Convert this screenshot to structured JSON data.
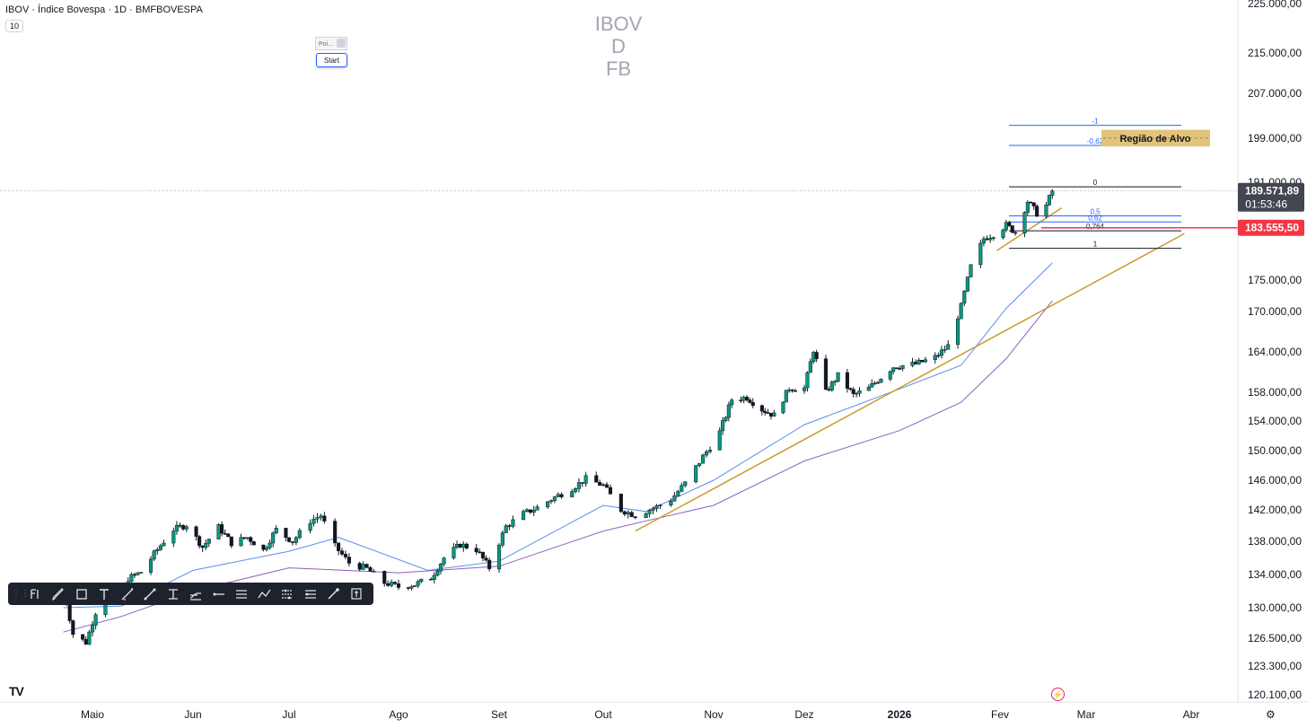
{
  "header": {
    "symbol_line": "IBOV · Índice Bovespa · 1D · BMFBOVESPA",
    "ma_badge": "10"
  },
  "watermark": {
    "lines": [
      "IBOV",
      "D",
      "FB"
    ]
  },
  "widget": {
    "title": "Poi…",
    "start_label": "Start"
  },
  "toolbar": {
    "icons": [
      "drag-handle-icon",
      "fib-pitchfork-icon",
      "brush-icon",
      "rectangle-icon",
      "text-icon",
      "trend-angle-icon",
      "line-icon",
      "fib-time-icon",
      "ruler-icon",
      "horizontal-ray-icon",
      "parallel-channel-icon",
      "path-icon",
      "regression-icon",
      "fib-channel-icon",
      "measure-icon",
      "snapshot-icon"
    ]
  },
  "colors": {
    "up_candle": "#089981",
    "down_candle": "#131722",
    "ma_fast": "#5b8def",
    "ma_slow": "#8e5fbf",
    "trendline": "#c99a2e",
    "target_box": "#e2c37a",
    "current_price_bg": "#434651",
    "alert_price": "#f23645",
    "fib_blue": "#2962ff"
  },
  "chart_data": {
    "type": "candlestick",
    "title": "",
    "xlabel": "",
    "ylabel": "",
    "y_axis_labels": [
      "225.000,00",
      "215.000,00",
      "207.000,00",
      "199.000,00",
      "191.000,00",
      "175.000,00",
      "170.000,00",
      "164.000,00",
      "158.000,00",
      "154.000,00",
      "150.000,00",
      "146.000,00",
      "142.000,00",
      "138.000,00",
      "134.000,00",
      "130.000,00",
      "126.500,00",
      "123.300,00",
      "120.100,00"
    ],
    "y_axis_values": [
      225000,
      215000,
      207000,
      199000,
      191000,
      175000,
      170000,
      164000,
      158000,
      154000,
      150000,
      146000,
      142000,
      138000,
      134000,
      130000,
      126500,
      123300,
      120100
    ],
    "x_axis_labels": [
      "Maio",
      "Jun",
      "Jul",
      "Ago",
      "Set",
      "Out",
      "Nov",
      "Dez",
      "2026",
      "Fev",
      "Mar",
      "Abr"
    ],
    "x_axis_dates": [
      "2025-05-01",
      "2025-06-01",
      "2025-07-01",
      "2025-08-01",
      "2025-09-01",
      "2025-10-01",
      "2025-11-01",
      "2025-12-01",
      "2026-01-01",
      "2026-02-01",
      "2026-03-01",
      "2026-04-01"
    ],
    "close_path": [
      [
        "2025-04-22",
        132500
      ],
      [
        "2025-04-25",
        127000
      ],
      [
        "2025-04-29",
        126000
      ],
      [
        "2025-05-02",
        129500
      ],
      [
        "2025-05-07",
        131500
      ],
      [
        "2025-05-12",
        133500
      ],
      [
        "2025-05-16",
        134300
      ],
      [
        "2025-05-21",
        137000
      ],
      [
        "2025-05-26",
        139500
      ],
      [
        "2025-05-30",
        140100
      ],
      [
        "2025-06-04",
        137300
      ],
      [
        "2025-06-09",
        139800
      ],
      [
        "2025-06-13",
        137800
      ],
      [
        "2025-06-18",
        138500
      ],
      [
        "2025-06-23",
        136900
      ],
      [
        "2025-06-27",
        139500
      ],
      [
        "2025-07-02",
        138000
      ],
      [
        "2025-07-07",
        140600
      ],
      [
        "2025-07-10",
        141300
      ],
      [
        "2025-07-14",
        137400
      ],
      [
        "2025-07-18",
        135400
      ],
      [
        "2025-07-23",
        134700
      ],
      [
        "2025-07-28",
        133000
      ],
      [
        "2025-08-01",
        132500
      ],
      [
        "2025-08-06",
        132800
      ],
      [
        "2025-08-11",
        133600
      ],
      [
        "2025-08-15",
        136000
      ],
      [
        "2025-08-20",
        137600
      ],
      [
        "2025-08-25",
        137000
      ],
      [
        "2025-08-29",
        134800
      ],
      [
        "2025-09-03",
        139900
      ],
      [
        "2025-09-08",
        141500
      ],
      [
        "2025-09-12",
        142300
      ],
      [
        "2025-09-17",
        143700
      ],
      [
        "2025-09-22",
        144900
      ],
      [
        "2025-09-26",
        146200
      ],
      [
        "2025-10-01",
        145300
      ],
      [
        "2025-10-06",
        142000
      ],
      [
        "2025-10-10",
        141300
      ],
      [
        "2025-10-15",
        142200
      ],
      [
        "2025-10-20",
        143400
      ],
      [
        "2025-10-24",
        145600
      ],
      [
        "2025-10-29",
        149200
      ],
      [
        "2025-11-03",
        152500
      ],
      [
        "2025-11-07",
        157000
      ],
      [
        "2025-11-12",
        157300
      ],
      [
        "2025-11-17",
        155600
      ],
      [
        "2025-11-21",
        154800
      ],
      [
        "2025-11-26",
        158600
      ],
      [
        "2025-12-01",
        158600
      ],
      [
        "2025-12-04",
        164300
      ],
      [
        "2025-12-08",
        158000
      ],
      [
        "2025-12-12",
        160500
      ],
      [
        "2025-12-17",
        157600
      ],
      [
        "2025-12-22",
        158600
      ],
      [
        "2025-12-30",
        161800
      ],
      [
        "2026-01-06",
        162200
      ],
      [
        "2026-01-12",
        163200
      ],
      [
        "2026-01-16",
        164900
      ],
      [
        "2026-01-20",
        170800
      ],
      [
        "2026-01-23",
        177200
      ],
      [
        "2026-01-27",
        181800
      ],
      [
        "2026-01-30",
        182500
      ],
      [
        "2026-02-03",
        184000
      ],
      [
        "2026-02-06",
        182800
      ],
      [
        "2026-02-10",
        187900
      ],
      [
        "2026-02-13",
        185900
      ],
      [
        "2026-02-16",
        187200
      ],
      [
        "2026-02-18",
        189571.89
      ]
    ],
    "ma_fast_path": [
      [
        "2025-04-22",
        130000
      ],
      [
        "2025-05-10",
        130200
      ],
      [
        "2025-06-01",
        134500
      ],
      [
        "2025-07-01",
        136800
      ],
      [
        "2025-07-15",
        138500
      ],
      [
        "2025-08-10",
        134500
      ],
      [
        "2025-09-01",
        135600
      ],
      [
        "2025-10-01",
        142600
      ],
      [
        "2025-10-13",
        141800
      ],
      [
        "2025-11-01",
        146000
      ],
      [
        "2025-12-01",
        153500
      ],
      [
        "2026-01-01",
        158500
      ],
      [
        "2026-01-20",
        162000
      ],
      [
        "2026-02-03",
        170500
      ],
      [
        "2026-02-18",
        177800
      ]
    ],
    "ma_slow_path": [
      [
        "2025-04-22",
        127200
      ],
      [
        "2025-05-10",
        129000
      ],
      [
        "2025-06-01",
        132000
      ],
      [
        "2025-07-01",
        134800
      ],
      [
        "2025-08-01",
        134200
      ],
      [
        "2025-09-01",
        135000
      ],
      [
        "2025-10-01",
        139300
      ],
      [
        "2025-10-13",
        140600
      ],
      [
        "2025-11-01",
        142600
      ],
      [
        "2025-12-01",
        148600
      ],
      [
        "2026-01-01",
        152700
      ],
      [
        "2026-01-20",
        156600
      ],
      [
        "2026-02-03",
        163000
      ],
      [
        "2026-02-18",
        171700
      ]
    ],
    "trendlines": [
      [
        [
          "2025-10-10",
          139300
        ],
        [
          "2026-03-30",
          182600
        ]
      ],
      [
        [
          "2026-01-31",
          179800
        ],
        [
          "2026-02-21",
          186800
        ]
      ]
    ],
    "fibonacci": {
      "levels": [
        {
          "label": "-1",
          "value": 201300
        },
        {
          "label": "-0,62",
          "value": 197700
        },
        {
          "label": "0",
          "value": 190250
        },
        {
          "label": "0,5",
          "value": 185500
        },
        {
          "label": "0,62",
          "value": 184500
        },
        {
          "label": "0,764",
          "value": 183050
        },
        {
          "label": "1",
          "value": 180200
        }
      ],
      "start": "2026-02-01",
      "end": "2026-03-26"
    },
    "target_zone": {
      "label": "Região de Alvo",
      "top": 200500,
      "bottom": 197500
    },
    "current_price": {
      "value": 189571.89,
      "label": "189.571,89",
      "countdown": "01:53:46"
    },
    "alert_line": {
      "value": 183555.5,
      "label": "183.555,50"
    }
  }
}
